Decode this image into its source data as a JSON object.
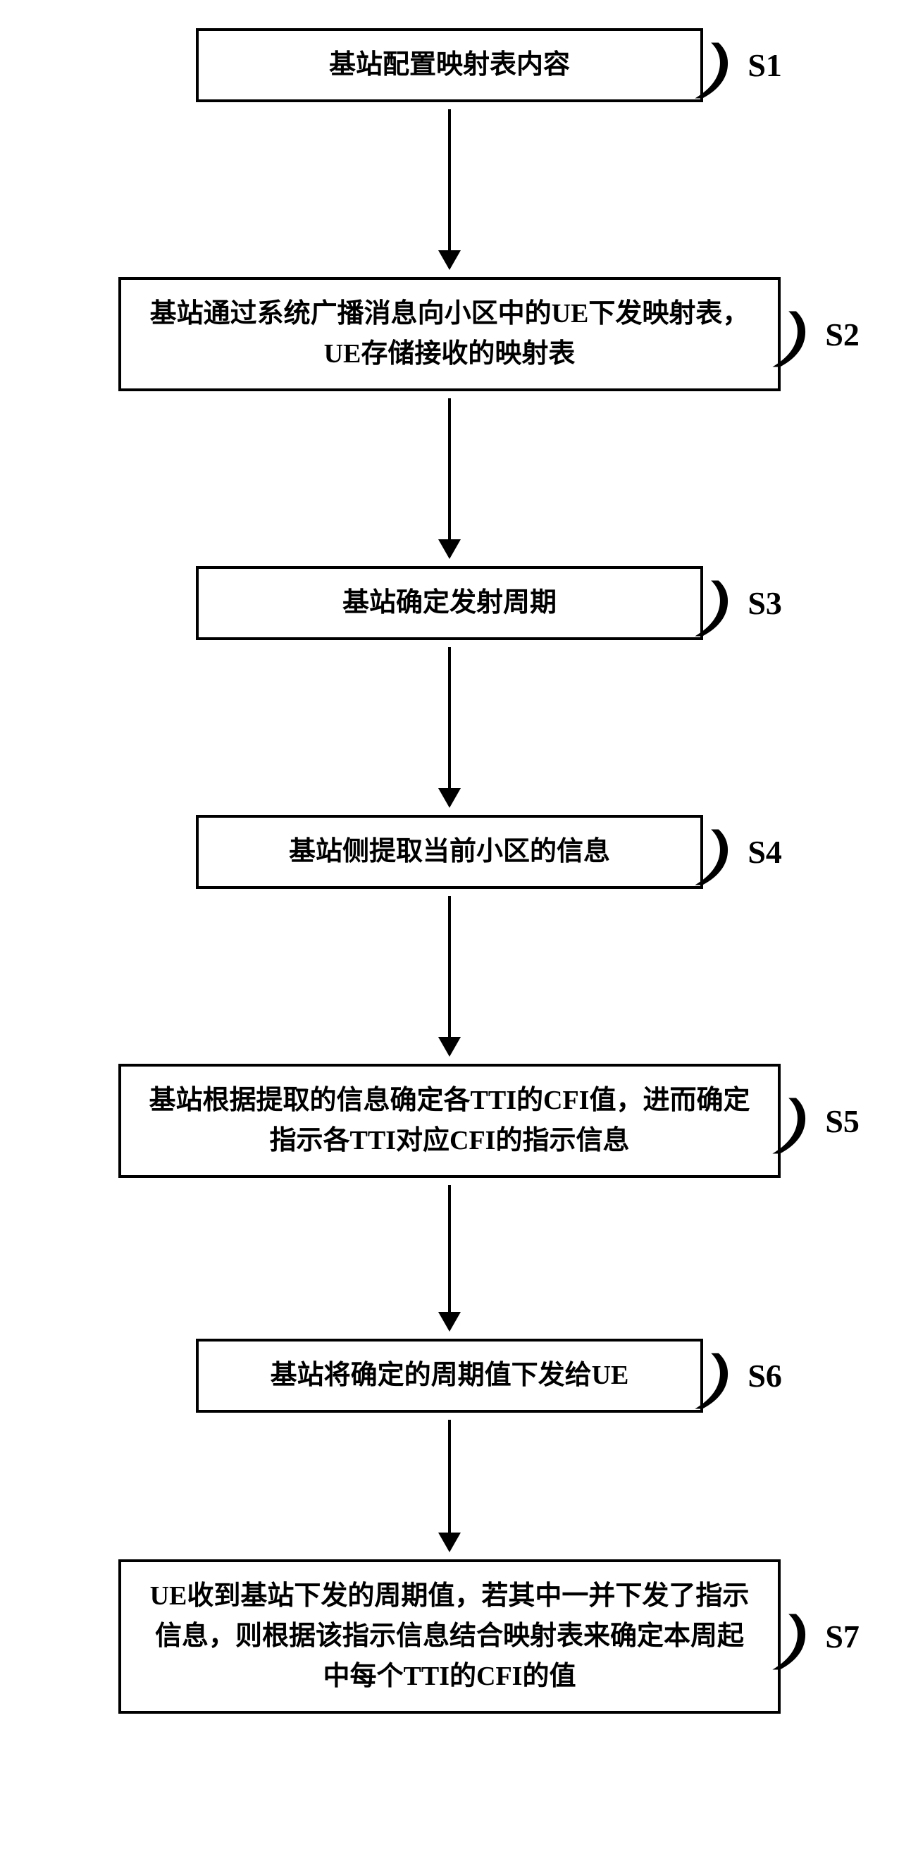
{
  "flowchart": {
    "type": "flowchart",
    "background_color": "#ffffff",
    "box_border_color": "#000000",
    "box_border_width": 4,
    "arrow_color": "#000000",
    "text_color": "#000000",
    "font_family": "SimSun",
    "box_font_size": 38,
    "label_font_size": 46,
    "steps": [
      {
        "id": "S1",
        "text": "基站配置映射表内容",
        "width": "narrow",
        "arrow_height": 200
      },
      {
        "id": "S2",
        "text": "基站通过系统广播消息向小区中的UE下发映射表，UE存储接收的映射表",
        "width": "wide",
        "arrow_height": 200
      },
      {
        "id": "S3",
        "text": "基站确定发射周期",
        "width": "narrow",
        "arrow_height": 200
      },
      {
        "id": "S4",
        "text": "基站侧提取当前小区的信息",
        "width": "narrow",
        "arrow_height": 200
      },
      {
        "id": "S5",
        "text": "基站根据提取的信息确定各TTI的CFI值，进而确定指示各TTI对应CFI的指示信息",
        "width": "wide",
        "arrow_height": 180
      },
      {
        "id": "S6",
        "text": "基站将确定的周期值下发给UE",
        "width": "narrow",
        "arrow_height": 160
      },
      {
        "id": "S7",
        "text": "UE收到基站下发的周期值，若其中一并下发了指示信息，则根据该指示信息结合映射表来确定本周起中每个TTI的CFI的值",
        "width": "wide",
        "arrow_height": 0
      }
    ]
  }
}
